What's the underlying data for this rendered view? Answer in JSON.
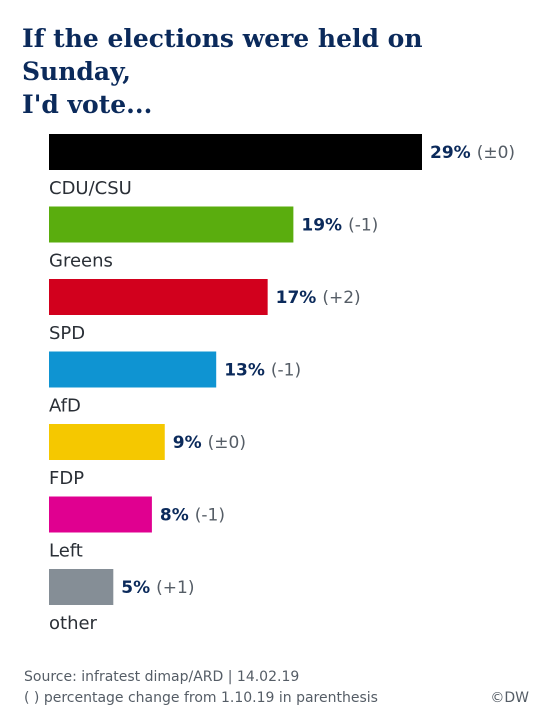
{
  "title": [
    "If the elections were held on Sunday,",
    "I'd vote..."
  ],
  "chart_data": {
    "type": "bar",
    "orientation": "horizontal",
    "categories": [
      "CDU/CSU",
      "Greens",
      "SPD",
      "AfD",
      "FDP",
      "Left",
      "other"
    ],
    "values": [
      29,
      19,
      17,
      13,
      9,
      8,
      5
    ],
    "value_labels": [
      "29%",
      "19%",
      "17%",
      "13%",
      "9%",
      "8%",
      "5%"
    ],
    "changes": [
      "(±0)",
      "(-1)",
      "(+2)",
      "(-1)",
      "(±0)",
      "(-1)",
      "(+1)"
    ],
    "colors": [
      "#000000",
      "#5aad0e",
      "#d2001d",
      "#0f94d2",
      "#f5c800",
      "#e00090",
      "#858e96"
    ],
    "unit": "%",
    "xlim": [
      0,
      29
    ]
  },
  "footer": {
    "source": "Source: infratest dimap/ARD | 14.02.19",
    "note": "( )  percentage change from 1.10.19 in parenthesis",
    "copyright": "©DW"
  }
}
